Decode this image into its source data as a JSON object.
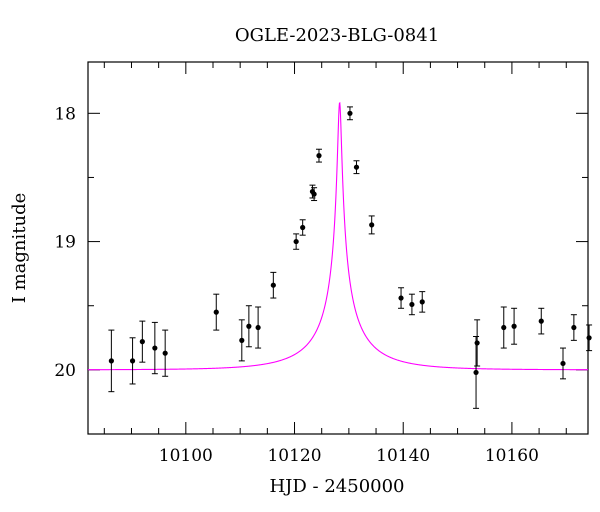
{
  "chart_data": {
    "type": "scatter",
    "title": "OGLE-2023-BLG-0841",
    "xlabel": "HJD - 2450000",
    "ylabel": "I magnitude",
    "xlim": [
      10082,
      10174
    ],
    "ylim": [
      20.5,
      17.6
    ],
    "y_inverted": true,
    "x_ticks": [
      10100,
      10120,
      10140,
      10160
    ],
    "x_tick_labels": [
      "10100",
      "10120",
      "10140",
      "10160"
    ],
    "y_ticks": [
      18,
      19,
      20
    ],
    "y_tick_labels": [
      "18",
      "19",
      "20"
    ],
    "grid": false,
    "model_color": "#ff00ff",
    "marker_color": "#000000",
    "model": {
      "type": "point-lens",
      "t0": 10128.3,
      "u0": 0.028,
      "tE": 12.0,
      "I_source": 21.94,
      "I_blend": 20.0
    },
    "series": [
      {
        "x": [
          10086.3,
          10090.2,
          10092.0,
          10094.3,
          10096.2,
          10105.6,
          10110.3,
          10111.6,
          10113.3,
          10116.1,
          10120.3,
          10121.5,
          10123.3,
          10123.6,
          10124.5,
          10130.2,
          10131.4,
          10134.2,
          10139.6,
          10141.6,
          10143.5,
          10153.4,
          10153.6,
          10158.5,
          10160.4,
          10165.4,
          10169.4,
          10171.4,
          10174.2
        ],
        "y": [
          19.93,
          19.93,
          19.78,
          19.83,
          19.87,
          19.55,
          19.77,
          19.66,
          19.67,
          19.34,
          19.0,
          18.89,
          18.61,
          18.63,
          18.33,
          18.0,
          18.42,
          18.87,
          19.44,
          19.49,
          19.47,
          20.02,
          19.79,
          19.67,
          19.66,
          19.62,
          19.95,
          19.67,
          19.75
        ],
        "yerr": [
          0.24,
          0.18,
          0.16,
          0.2,
          0.18,
          0.14,
          0.16,
          0.16,
          0.16,
          0.1,
          0.06,
          0.06,
          0.05,
          0.05,
          0.05,
          0.05,
          0.05,
          0.07,
          0.08,
          0.08,
          0.08,
          0.28,
          0.18,
          0.16,
          0.14,
          0.1,
          0.12,
          0.1,
          0.1
        ]
      }
    ]
  }
}
